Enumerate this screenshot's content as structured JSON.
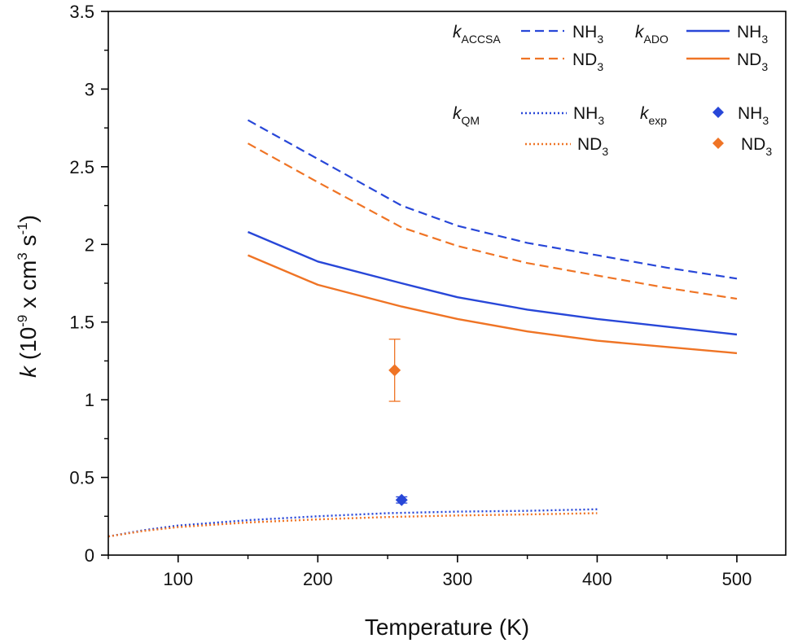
{
  "colors": {
    "nh3": "#2847d8",
    "nd3": "#ef7425",
    "axis": "#000000"
  },
  "chart_data": {
    "type": "line",
    "xlabel": "Temperature (K)",
    "ylabel": {
      "var": "k",
      "open": " (10",
      "exp1": "-9",
      "mid": " x cm",
      "exp2": "3",
      "sp": " s",
      "exp3": "-1",
      "close": ")"
    },
    "xlim": [
      50,
      535
    ],
    "ylim": [
      0,
      3.5
    ],
    "xticks": [
      100,
      200,
      300,
      400,
      500
    ],
    "yticks": [
      0,
      0.5,
      1,
      1.5,
      2,
      2.5,
      3,
      3.5
    ],
    "xtick_labels": [
      "100",
      "200",
      "300",
      "400",
      "500"
    ],
    "ytick_labels": [
      "0",
      "0.5",
      "1",
      "1.5",
      "2",
      "2.5",
      "3",
      "3.5"
    ],
    "grid": false,
    "legend_placement": "top-right",
    "legend_groups": [
      {
        "sym": "k",
        "sub": "ACCSA"
      },
      {
        "sym": "k",
        "sub": "ADO"
      },
      {
        "sym": "k",
        "sub": "QM"
      },
      {
        "sym": "k",
        "sub": "exp"
      }
    ],
    "species_labels": {
      "nh3": {
        "base": "NH",
        "sub": "3"
      },
      "nd3": {
        "base": "ND",
        "sub": "3"
      }
    },
    "series": [
      {
        "model": "ACCSA",
        "species": "NH3",
        "style": "dashed",
        "x": [
          150,
          200,
          260,
          300,
          350,
          400,
          450,
          500
        ],
        "y": [
          2.8,
          2.55,
          2.25,
          2.12,
          2.01,
          1.93,
          1.85,
          1.78
        ]
      },
      {
        "model": "ACCSA",
        "species": "ND3",
        "style": "dashed",
        "x": [
          150,
          200,
          260,
          300,
          350,
          400,
          450,
          500
        ],
        "y": [
          2.65,
          2.4,
          2.11,
          1.99,
          1.88,
          1.8,
          1.72,
          1.65
        ]
      },
      {
        "model": "ADO",
        "species": "NH3",
        "style": "solid",
        "x": [
          150,
          200,
          260,
          300,
          350,
          400,
          450,
          500
        ],
        "y": [
          2.08,
          1.89,
          1.75,
          1.66,
          1.58,
          1.52,
          1.47,
          1.42
        ]
      },
      {
        "model": "ADO",
        "species": "ND3",
        "style": "solid",
        "x": [
          150,
          200,
          260,
          300,
          350,
          400,
          450,
          500
        ],
        "y": [
          1.93,
          1.74,
          1.6,
          1.52,
          1.44,
          1.38,
          1.34,
          1.3
        ]
      },
      {
        "model": "QM",
        "species": "NH3",
        "style": "dotted",
        "x": [
          50,
          75,
          100,
          150,
          200,
          250,
          300,
          350,
          400
        ],
        "y": [
          0.12,
          0.16,
          0.19,
          0.225,
          0.25,
          0.27,
          0.28,
          0.285,
          0.295
        ]
      },
      {
        "model": "QM",
        "species": "ND3",
        "style": "dotted",
        "x": [
          50,
          75,
          100,
          150,
          200,
          250,
          300,
          350,
          400
        ],
        "y": [
          0.12,
          0.155,
          0.18,
          0.21,
          0.23,
          0.245,
          0.255,
          0.262,
          0.27
        ]
      }
    ],
    "points": [
      {
        "model": "exp",
        "species": "NH3",
        "x": 260,
        "y": 0.355,
        "err": 0.02
      },
      {
        "model": "exp",
        "species": "ND3",
        "x": 255,
        "y": 1.19,
        "err": 0.2
      }
    ]
  }
}
